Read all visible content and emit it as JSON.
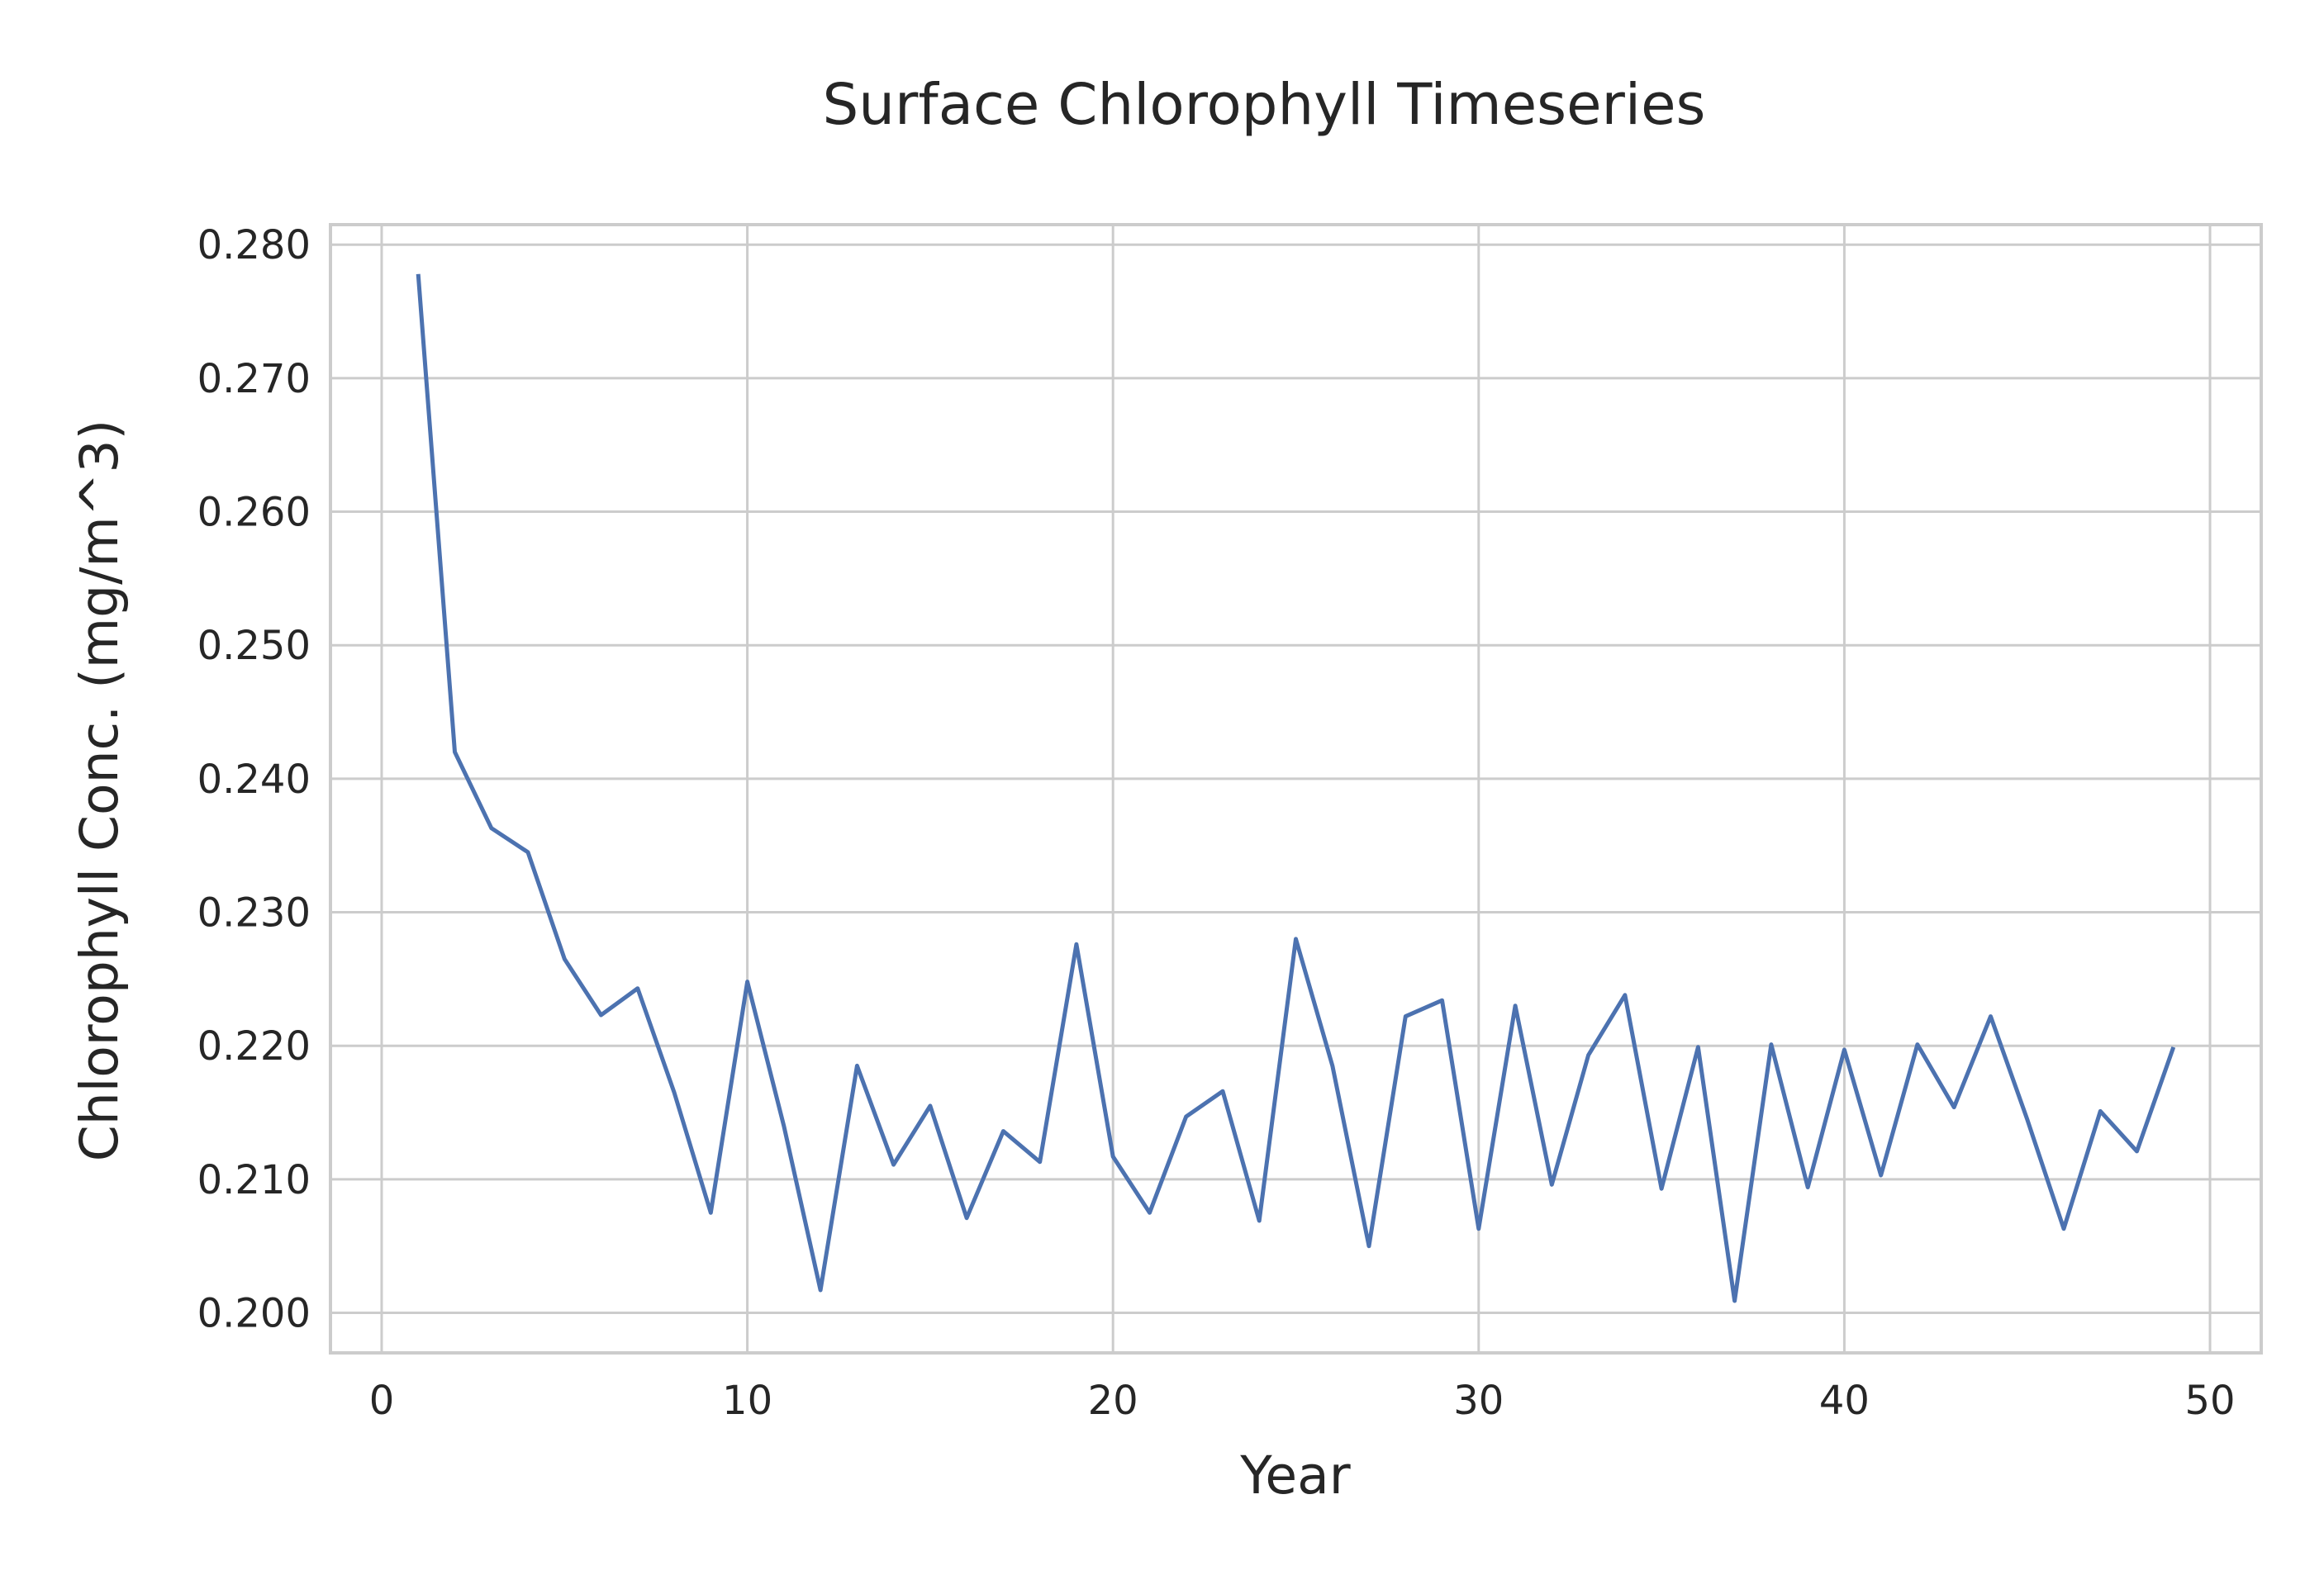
{
  "chart_data": {
    "type": "line",
    "title": "Surface Chlorophyll Timeseries",
    "xlabel": "Year",
    "ylabel": "Chlorophyll Conc. (mg/m^3)",
    "xlim": [
      -1.4,
      51.4
    ],
    "ylim": [
      0.197,
      0.2815
    ],
    "xticks": [
      0,
      10,
      20,
      30,
      40,
      50
    ],
    "xtick_labels": [
      "0",
      "10",
      "20",
      "30",
      "40",
      "50"
    ],
    "yticks": [
      0.2,
      0.21,
      0.22,
      0.23,
      0.24,
      0.25,
      0.26,
      0.27,
      0.28
    ],
    "ytick_labels": [
      "0.200",
      "0.210",
      "0.220",
      "0.230",
      "0.240",
      "0.250",
      "0.260",
      "0.270",
      "0.280"
    ],
    "grid": true,
    "series": [
      {
        "color": "#4c72b0",
        "x": [
          1,
          2,
          3,
          4,
          5,
          6,
          7,
          8,
          9,
          10,
          11,
          12,
          13,
          14,
          15,
          16,
          17,
          18,
          19,
          20,
          21,
          22,
          23,
          24,
          25,
          26,
          27,
          28,
          29,
          30,
          31,
          32,
          33,
          34,
          35,
          36,
          37,
          38,
          39,
          40,
          41,
          42,
          43,
          44,
          45,
          46,
          47,
          48,
          49
        ],
        "y": [
          0.2778,
          0.242,
          0.2363,
          0.2345,
          0.2265,
          0.2223,
          0.2243,
          0.2165,
          0.2075,
          0.2248,
          0.214,
          0.2017,
          0.2185,
          0.2111,
          0.2155,
          0.2071,
          0.2136,
          0.2113,
          0.2276,
          0.2117,
          0.2075,
          0.2147,
          0.2166,
          0.2069,
          0.228,
          0.2185,
          0.205,
          0.2222,
          0.2234,
          0.2063,
          0.223,
          0.2096,
          0.2193,
          0.2238,
          0.2093,
          0.2199,
          0.2009,
          0.2201,
          0.2094,
          0.2197,
          0.2103,
          0.2201,
          0.2154,
          0.2222,
          0.2145,
          0.2063,
          0.2151,
          0.2121,
          0.2199
        ]
      }
    ]
  }
}
